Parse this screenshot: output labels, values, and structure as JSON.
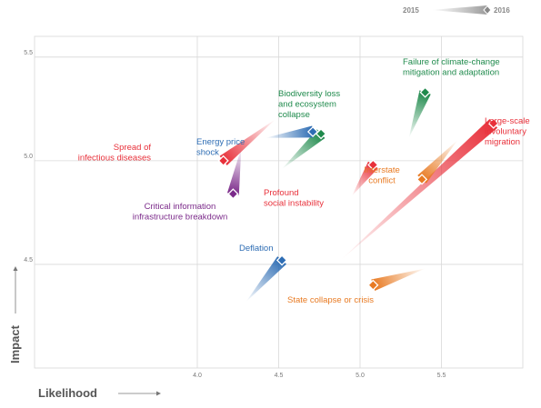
{
  "chart_data": {
    "type": "scatter",
    "title": "",
    "xlabel": "Likelihood",
    "ylabel": "Impact",
    "xlim": [
      3.0,
      6.0
    ],
    "ylim": [
      4.0,
      5.6
    ],
    "x_ticks": [
      "4.0",
      "4.5",
      "5.0",
      "5.5"
    ],
    "y_ticks": [
      "4.5",
      "5.0",
      "5.5"
    ],
    "grid": true,
    "legend": {
      "from": "2015",
      "to": "2016",
      "placement": "top-right"
    },
    "series": [
      {
        "label": [
          "Large-scale",
          "involuntary",
          "migration"
        ],
        "color": "#e8303a",
        "x_2015": 4.88,
        "y_2015": 4.52,
        "x_2016": 5.82,
        "y_2016": 5.18
      },
      {
        "label": [
          "Interstate",
          "conflict"
        ],
        "color": "#e87a22",
        "x_2015": 5.6,
        "y_2015": 5.1,
        "x_2016": 5.38,
        "y_2016": 4.91
      },
      {
        "label": [
          "Profound",
          "social instability"
        ],
        "color": "#e8303a",
        "x_2015": 4.95,
        "y_2015": 4.83,
        "x_2016": 5.08,
        "y_2016": 4.98
      },
      {
        "label": [
          "Failure of climate-change",
          "mitigation and adaptation"
        ],
        "color": "#1f8a4c",
        "x_2015": 5.3,
        "y_2015": 5.11,
        "x_2016": 5.4,
        "y_2016": 5.33
      },
      {
        "label": [
          "Biodiversity loss",
          "and ecosystem",
          "collapse"
        ],
        "color": "#1f8a4c",
        "x_2015": 4.52,
        "y_2015": 4.96,
        "x_2016": 4.76,
        "y_2016": 5.13
      },
      {
        "label": [
          "Energy price",
          "shock"
        ],
        "color": "#2e6db4",
        "x_2015": 4.42,
        "y_2015": 5.11,
        "x_2016": 4.71,
        "y_2016": 5.14
      },
      {
        "label": [
          "Spread of",
          "infectious diseases"
        ],
        "color": "#e8303a",
        "x_2015": 4.48,
        "y_2015": 5.2,
        "x_2016": 4.16,
        "y_2016": 5.0
      },
      {
        "label": [
          "Critical information",
          "infrastructure breakdown"
        ],
        "color": "#7b2a8a",
        "x_2015": 4.27,
        "y_2015": 5.06,
        "x_2016": 4.22,
        "y_2016": 4.84
      },
      {
        "label": [
          "Deflation"
        ],
        "color": "#2e6db4",
        "x_2015": 4.3,
        "y_2015": 4.32,
        "x_2016": 4.52,
        "y_2016": 4.52
      },
      {
        "label": [
          "State collapse or crisis"
        ],
        "color": "#e87a22",
        "x_2015": 5.4,
        "y_2015": 4.48,
        "x_2016": 5.08,
        "y_2016": 4.4
      }
    ]
  }
}
